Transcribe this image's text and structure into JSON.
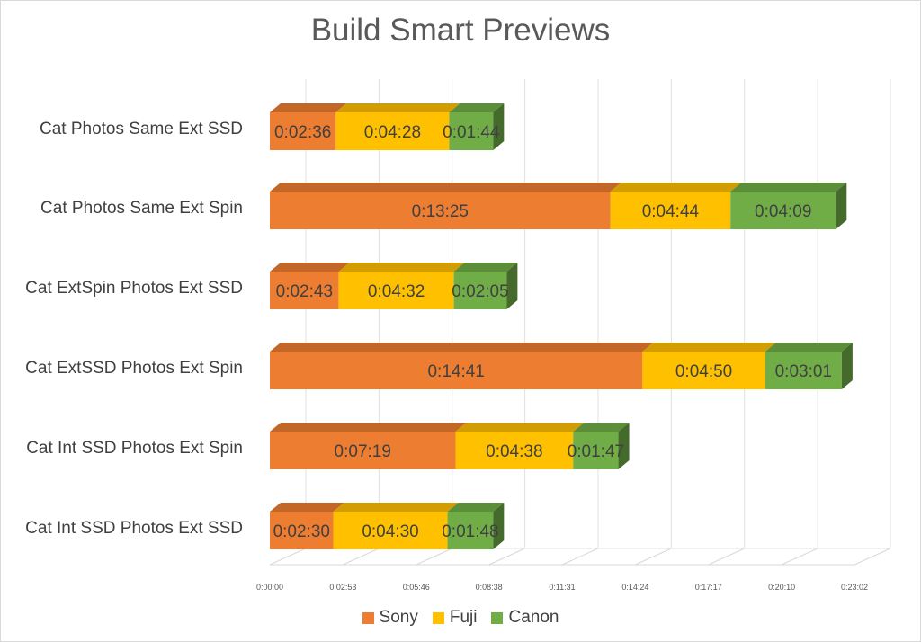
{
  "chart_data": {
    "type": "bar",
    "orientation": "horizontal",
    "stacked": true,
    "style": "3d",
    "title": "Build Smart Previews",
    "categories": [
      "Cat Photos Same Ext SSD",
      "Cat Photos Same Ext Spin",
      "Cat ExtSpin Photos Ext SSD",
      "Cat ExtSSD Photos Ext Spin",
      "Cat Int SSD Photos Ext Spin",
      "Cat Int SSD Photos Ext SSD"
    ],
    "series": [
      {
        "name": "Sony",
        "color": "#ED7D31",
        "labels": [
          "0:02:36",
          "0:13:25",
          "0:02:43",
          "0:14:41",
          "0:07:19",
          "0:02:30"
        ],
        "values_seconds": [
          156,
          805,
          163,
          881,
          439,
          150
        ]
      },
      {
        "name": "Fuji",
        "color": "#FFC000",
        "labels": [
          "0:04:28",
          "0:04:44",
          "0:04:32",
          "0:04:50",
          "0:04:38",
          "0:04:30"
        ],
        "values_seconds": [
          268,
          284,
          272,
          290,
          278,
          270
        ]
      },
      {
        "name": "Canon",
        "color": "#70AD47",
        "labels": [
          "0:01:44",
          "0:04:09",
          "0:02:05",
          "0:03:01",
          "0:01:47",
          "0:01:48"
        ],
        "values_seconds": [
          104,
          249,
          125,
          181,
          107,
          108
        ]
      }
    ],
    "x_axis": {
      "ticks": [
        "0:00:00",
        "0:02:53",
        "0:05:46",
        "0:08:38",
        "0:11:31",
        "0:14:24",
        "0:17:17",
        "0:20:10",
        "0:23:02"
      ],
      "tick_values_seconds": [
        0,
        173,
        346,
        518,
        691,
        864,
        1037,
        1210,
        1382
      ],
      "range_seconds": [
        0,
        1382
      ]
    },
    "grid": true,
    "legend_position": "bottom"
  }
}
